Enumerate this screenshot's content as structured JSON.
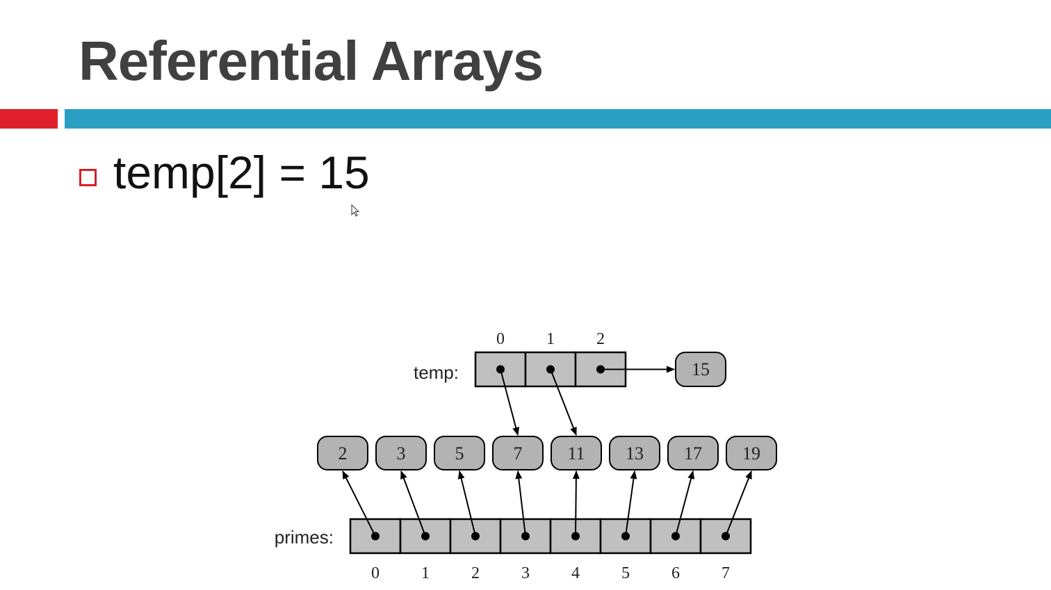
{
  "slide": {
    "title": "Referential Arrays",
    "bullet": "temp[2] = 15",
    "accent_red": "#e0202a",
    "accent_blue": "#2b9fc2",
    "bullet_color": "#d32027"
  },
  "diagram": {
    "temp_label": "temp:",
    "primes_label": "primes:",
    "temp_indices": [
      "0",
      "1",
      "2"
    ],
    "primes_indices": [
      "0",
      "1",
      "2",
      "3",
      "4",
      "5",
      "6",
      "7"
    ],
    "element_values": [
      "2",
      "3",
      "5",
      "7",
      "11",
      "13",
      "17",
      "19"
    ],
    "new_value": "15",
    "cell_fill": "#c0c0c0",
    "node_fill": "#b3b3b3"
  }
}
